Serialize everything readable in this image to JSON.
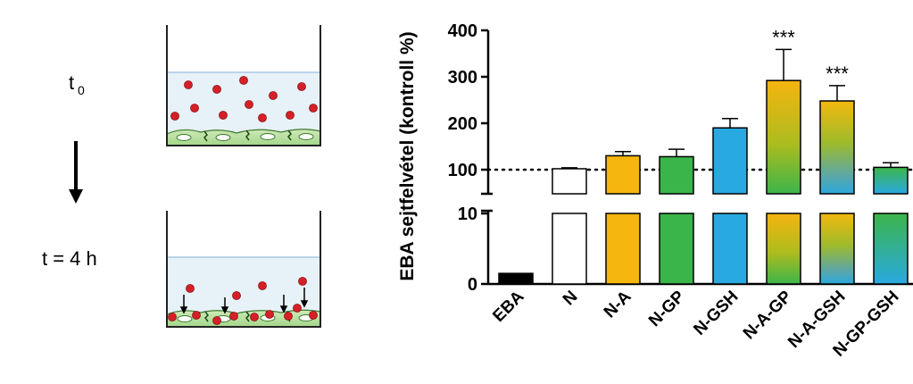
{
  "diagram": {
    "time_start_label": "t",
    "time_start_subscript": "0",
    "time_end_label": "t = 4 h"
  },
  "chart_data": {
    "type": "bar",
    "ylabel": "EBA sejtfelvétel (kontroll %)",
    "y_axis_break": true,
    "lower_segment": {
      "ylim": [
        0,
        10
      ],
      "ticks": [
        "0",
        "10"
      ]
    },
    "upper_segment": {
      "ylim": [
        100,
        400
      ],
      "ticks": [
        "100",
        "200",
        "300",
        "400"
      ]
    },
    "reference_line": {
      "value": 100,
      "style": "dotted"
    },
    "categories": [
      "EBA",
      "N",
      "N-A",
      "N-GP",
      "N-GSH",
      "N-A-GP",
      "N-A-GSH",
      "N-GP-GSH"
    ],
    "values": [
      1.5,
      102,
      130,
      128,
      190,
      292,
      248,
      105
    ],
    "errors": [
      0,
      2,
      9,
      16,
      20,
      67,
      33,
      10
    ],
    "annotations": [
      "",
      "",
      "",
      "",
      "",
      "***",
      "***",
      ""
    ],
    "colors": [
      "#000000",
      "#ffffff",
      "#f5b60d",
      "#3ab54a",
      "#29a9e1",
      "gradient-orange-green",
      "gradient-yellow-green-blue",
      "gradient-green-blue"
    ]
  }
}
